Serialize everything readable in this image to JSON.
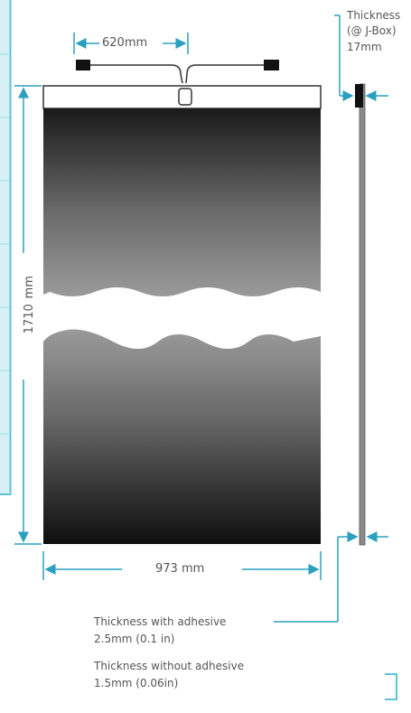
{
  "dimensions": {
    "cable_spacing": "620mm",
    "length_value": "1710",
    "length_unit": "mm",
    "width": "973 mm"
  },
  "thickness_jbox": {
    "line1": "Thickness",
    "line2": "(@ J-Box)",
    "line3": "17mm"
  },
  "thickness_with_adhesive": {
    "title": "Thickness with adhesive",
    "value": "2.5mm (0.1 in)"
  },
  "thickness_without_adhesive": {
    "title": "Thickness without adhesive",
    "value": "1.5mm (0.06in)"
  },
  "colors": {
    "accent": "#2a9fc0",
    "panel_dark": "#111111",
    "panel_mid": "#6a6a6a",
    "side_profile": "#8a8a8a"
  }
}
